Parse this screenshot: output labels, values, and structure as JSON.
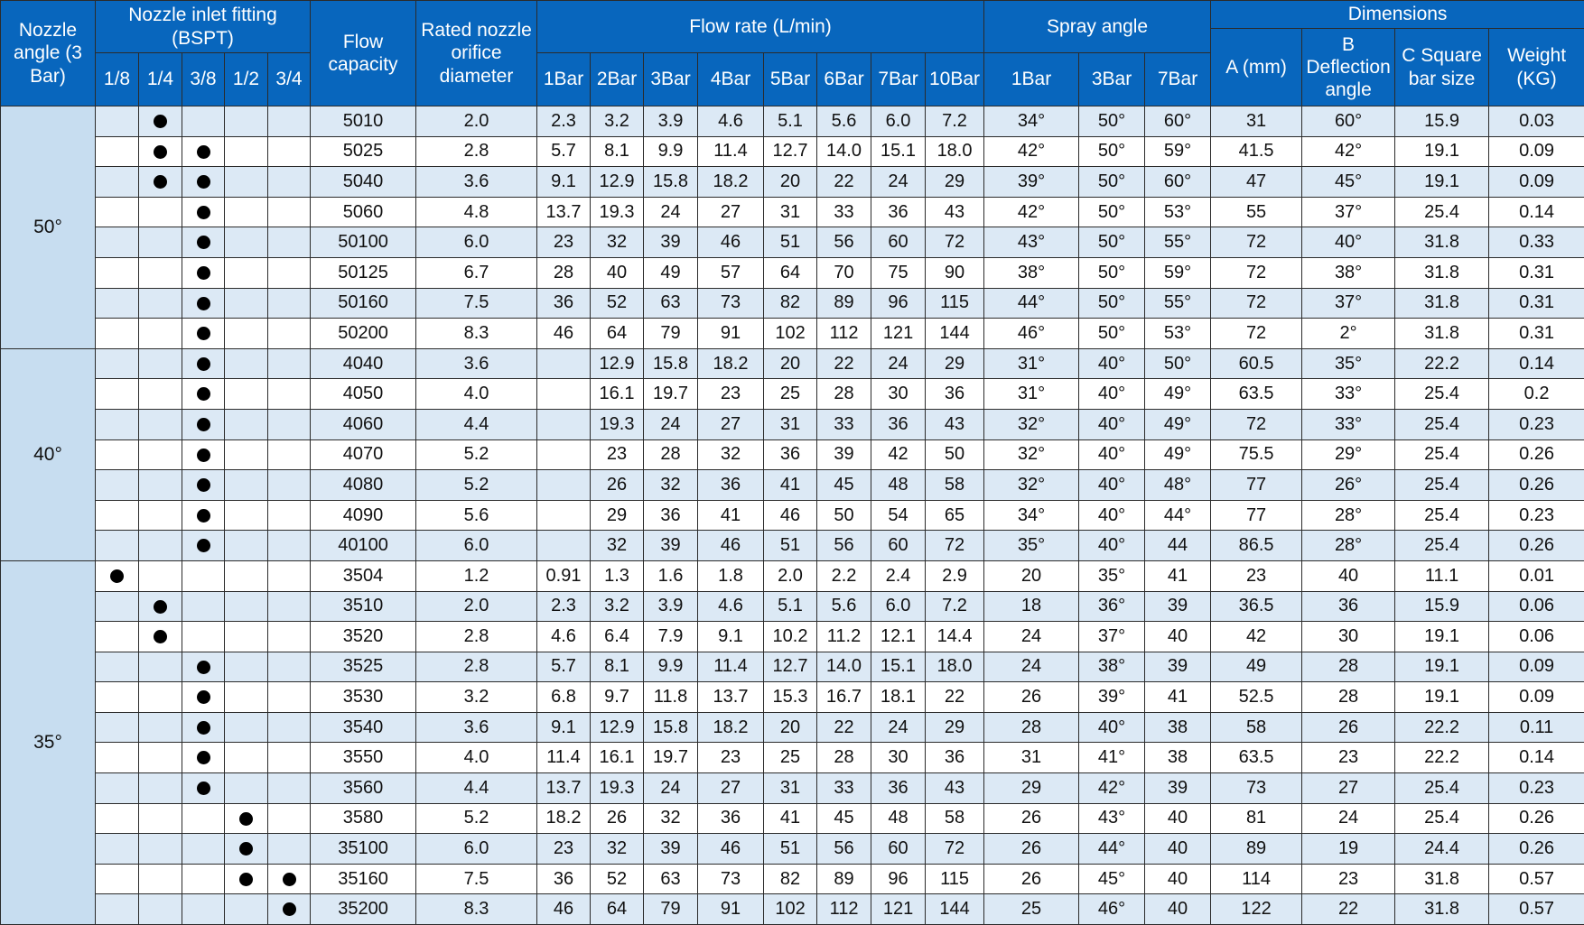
{
  "header": {
    "nozzle_angle": "Nozzle angle (3 Bar)",
    "inlet_fitting": "Nozzle inlet fitting (BSPT)",
    "fitting_sizes": [
      "1/8",
      "1/4",
      "3/8",
      "1/2",
      "3/4"
    ],
    "flow_capacity": "Flow capacity",
    "orifice_diameter": "Rated nozzle orifice diameter",
    "flow_rate": "Flow rate (L/min)",
    "pressures": [
      "1Bar",
      "2Bar",
      "3Bar",
      "4Bar",
      "5Bar",
      "6Bar",
      "7Bar",
      "10Bar"
    ],
    "spray_angle": "Spray angle",
    "spray_pressures": [
      "1Bar",
      "3Bar",
      "7Bar"
    ],
    "dimensions": "Dimensions",
    "dim_a": "A (mm)",
    "dim_b": "B Deflection angle",
    "dim_c": "C Square bar size",
    "weight": "Weight (KG)"
  },
  "groups": [
    {
      "angle": "50°",
      "rows": [
        {
          "fittings": [
            false,
            true,
            false,
            false,
            false
          ],
          "capacity": "5010",
          "orifice": "2.0",
          "flow": [
            "2.3",
            "3.2",
            "3.9",
            "4.6",
            "5.1",
            "5.6",
            "6.0",
            "7.2"
          ],
          "spray": [
            "34°",
            "50°",
            "60°"
          ],
          "a": "31",
          "b": "60°",
          "c": "15.9",
          "weight": "0.03"
        },
        {
          "fittings": [
            false,
            true,
            true,
            false,
            false
          ],
          "capacity": "5025",
          "orifice": "2.8",
          "flow": [
            "5.7",
            "8.1",
            "9.9",
            "11.4",
            "12.7",
            "14.0",
            "15.1",
            "18.0"
          ],
          "spray": [
            "42°",
            "50°",
            "59°"
          ],
          "a": "41.5",
          "b": "42°",
          "c": "19.1",
          "weight": "0.09"
        },
        {
          "fittings": [
            false,
            true,
            true,
            false,
            false
          ],
          "capacity": "5040",
          "orifice": "3.6",
          "flow": [
            "9.1",
            "12.9",
            "15.8",
            "18.2",
            "20",
            "22",
            "24",
            "29"
          ],
          "spray": [
            "39°",
            "50°",
            "60°"
          ],
          "a": "47",
          "b": "45°",
          "c": "19.1",
          "weight": "0.09"
        },
        {
          "fittings": [
            false,
            false,
            true,
            false,
            false
          ],
          "capacity": "5060",
          "orifice": "4.8",
          "flow": [
            "13.7",
            "19.3",
            "24",
            "27",
            "31",
            "33",
            "36",
            "43"
          ],
          "spray": [
            "42°",
            "50°",
            "53°"
          ],
          "a": "55",
          "b": "37°",
          "c": "25.4",
          "weight": "0.14"
        },
        {
          "fittings": [
            false,
            false,
            true,
            false,
            false
          ],
          "capacity": "50100",
          "orifice": "6.0",
          "flow": [
            "23",
            "32",
            "39",
            "46",
            "51",
            "56",
            "60",
            "72"
          ],
          "spray": [
            "43°",
            "50°",
            "55°"
          ],
          "a": "72",
          "b": "40°",
          "c": "31.8",
          "weight": "0.33"
        },
        {
          "fittings": [
            false,
            false,
            true,
            false,
            false
          ],
          "capacity": "50125",
          "orifice": "6.7",
          "flow": [
            "28",
            "40",
            "49",
            "57",
            "64",
            "70",
            "75",
            "90"
          ],
          "spray": [
            "38°",
            "50°",
            "59°"
          ],
          "a": "72",
          "b": "38°",
          "c": "31.8",
          "weight": "0.31"
        },
        {
          "fittings": [
            false,
            false,
            true,
            false,
            false
          ],
          "capacity": "50160",
          "orifice": "7.5",
          "flow": [
            "36",
            "52",
            "63",
            "73",
            "82",
            "89",
            "96",
            "115"
          ],
          "spray": [
            "44°",
            "50°",
            "55°"
          ],
          "a": "72",
          "b": "37°",
          "c": "31.8",
          "weight": "0.31"
        },
        {
          "fittings": [
            false,
            false,
            true,
            false,
            false
          ],
          "capacity": "50200",
          "orifice": "8.3",
          "flow": [
            "46",
            "64",
            "79",
            "91",
            "102",
            "112",
            "121",
            "144"
          ],
          "spray": [
            "46°",
            "50°",
            "53°"
          ],
          "a": "72",
          "b": "2°",
          "c": "31.8",
          "weight": "0.31"
        }
      ]
    },
    {
      "angle": "40°",
      "rows": [
        {
          "fittings": [
            false,
            false,
            true,
            false,
            false
          ],
          "capacity": "4040",
          "orifice": "3.6",
          "flow": [
            null,
            "12.9",
            "15.8",
            "18.2",
            "20",
            "22",
            "24",
            "29"
          ],
          "spray": [
            "31°",
            "40°",
            "50°"
          ],
          "a": "60.5",
          "b": "35°",
          "c": "22.2",
          "weight": "0.14"
        },
        {
          "fittings": [
            false,
            false,
            true,
            false,
            false
          ],
          "capacity": "4050",
          "orifice": "4.0",
          "flow": [
            null,
            "16.1",
            "19.7",
            "23",
            "25",
            "28",
            "30",
            "36"
          ],
          "spray": [
            "31°",
            "40°",
            "49°"
          ],
          "a": "63.5",
          "b": "33°",
          "c": "25.4",
          "weight": "0.2"
        },
        {
          "fittings": [
            false,
            false,
            true,
            false,
            false
          ],
          "capacity": "4060",
          "orifice": "4.4",
          "flow": [
            null,
            "19.3",
            "24",
            "27",
            "31",
            "33",
            "36",
            "43"
          ],
          "spray": [
            "32°",
            "40°",
            "49°"
          ],
          "a": "72",
          "b": "33°",
          "c": "25.4",
          "weight": "0.23"
        },
        {
          "fittings": [
            false,
            false,
            true,
            false,
            false
          ],
          "capacity": "4070",
          "orifice": "5.2",
          "flow": [
            null,
            "23",
            "28",
            "32",
            "36",
            "39",
            "42",
            "50"
          ],
          "spray": [
            "32°",
            "40°",
            "49°"
          ],
          "a": "75.5",
          "b": "29°",
          "c": "25.4",
          "weight": "0.26"
        },
        {
          "fittings": [
            false,
            false,
            true,
            false,
            false
          ],
          "capacity": "4080",
          "orifice": "5.2",
          "flow": [
            null,
            "26",
            "32",
            "36",
            "41",
            "45",
            "48",
            "58"
          ],
          "spray": [
            "32°",
            "40°",
            "48°"
          ],
          "a": "77",
          "b": "26°",
          "c": "25.4",
          "weight": "0.26"
        },
        {
          "fittings": [
            false,
            false,
            true,
            false,
            false
          ],
          "capacity": "4090",
          "orifice": "5.6",
          "flow": [
            null,
            "29",
            "36",
            "41",
            "46",
            "50",
            "54",
            "65"
          ],
          "spray": [
            "34°",
            "40°",
            "44°"
          ],
          "a": "77",
          "b": "28°",
          "c": "25.4",
          "weight": "0.23"
        },
        {
          "fittings": [
            false,
            false,
            true,
            false,
            false
          ],
          "capacity": "40100",
          "orifice": "6.0",
          "flow": [
            null,
            "32",
            "39",
            "46",
            "51",
            "56",
            "60",
            "72"
          ],
          "spray": [
            "35°",
            "40°",
            "44"
          ],
          "a": "86.5",
          "b": "28°",
          "c": "25.4",
          "weight": "0.26"
        }
      ]
    },
    {
      "angle": "35°",
      "rows": [
        {
          "fittings": [
            true,
            false,
            false,
            false,
            false
          ],
          "capacity": "3504",
          "orifice": "1.2",
          "flow": [
            "0.91",
            "1.3",
            "1.6",
            "1.8",
            "2.0",
            "2.2",
            "2.4",
            "2.9"
          ],
          "spray": [
            "20",
            "35°",
            "41"
          ],
          "a": "23",
          "b": "40",
          "c": "11.1",
          "weight": "0.01"
        },
        {
          "fittings": [
            false,
            true,
            false,
            false,
            false
          ],
          "capacity": "3510",
          "orifice": "2.0",
          "flow": [
            "2.3",
            "3.2",
            "3.9",
            "4.6",
            "5.1",
            "5.6",
            "6.0",
            "7.2"
          ],
          "spray": [
            "18",
            "36°",
            "39"
          ],
          "a": "36.5",
          "b": "36",
          "c": "15.9",
          "weight": "0.06"
        },
        {
          "fittings": [
            false,
            true,
            false,
            false,
            false
          ],
          "capacity": "3520",
          "orifice": "2.8",
          "flow": [
            "4.6",
            "6.4",
            "7.9",
            "9.1",
            "10.2",
            "11.2",
            "12.1",
            "14.4"
          ],
          "spray": [
            "24",
            "37°",
            "40"
          ],
          "a": "42",
          "b": "30",
          "c": "19.1",
          "weight": "0.06"
        },
        {
          "fittings": [
            false,
            false,
            true,
            false,
            false
          ],
          "capacity": "3525",
          "orifice": "2.8",
          "flow": [
            "5.7",
            "8.1",
            "9.9",
            "11.4",
            "12.7",
            "14.0",
            "15.1",
            "18.0"
          ],
          "spray": [
            "24",
            "38°",
            "39"
          ],
          "a": "49",
          "b": "28",
          "c": "19.1",
          "weight": "0.09"
        },
        {
          "fittings": [
            false,
            false,
            true,
            false,
            false
          ],
          "capacity": "3530",
          "orifice": "3.2",
          "flow": [
            "6.8",
            "9.7",
            "11.8",
            "13.7",
            "15.3",
            "16.7",
            "18.1",
            "22"
          ],
          "spray": [
            "26",
            "39°",
            "41"
          ],
          "a": "52.5",
          "b": "28",
          "c": "19.1",
          "weight": "0.09"
        },
        {
          "fittings": [
            false,
            false,
            true,
            false,
            false
          ],
          "capacity": "3540",
          "orifice": "3.6",
          "flow": [
            "9.1",
            "12.9",
            "15.8",
            "18.2",
            "20",
            "22",
            "24",
            "29"
          ],
          "spray": [
            "28",
            "40°",
            "38"
          ],
          "a": "58",
          "b": "26",
          "c": "22.2",
          "weight": "0.11"
        },
        {
          "fittings": [
            false,
            false,
            true,
            false,
            false
          ],
          "capacity": "3550",
          "orifice": "4.0",
          "flow": [
            "11.4",
            "16.1",
            "19.7",
            "23",
            "25",
            "28",
            "30",
            "36"
          ],
          "spray": [
            "31",
            "41°",
            "38"
          ],
          "a": "63.5",
          "b": "23",
          "c": "22.2",
          "weight": "0.14"
        },
        {
          "fittings": [
            false,
            false,
            true,
            false,
            false
          ],
          "capacity": "3560",
          "orifice": "4.4",
          "flow": [
            "13.7",
            "19.3",
            "24",
            "27",
            "31",
            "33",
            "36",
            "43"
          ],
          "spray": [
            "29",
            "42°",
            "39"
          ],
          "a": "73",
          "b": "27",
          "c": "25.4",
          "weight": "0.23"
        },
        {
          "fittings": [
            false,
            false,
            false,
            true,
            false
          ],
          "capacity": "3580",
          "orifice": "5.2",
          "flow": [
            "18.2",
            "26",
            "32",
            "36",
            "41",
            "45",
            "48",
            "58"
          ],
          "spray": [
            "26",
            "43°",
            "40"
          ],
          "a": "81",
          "b": "24",
          "c": "25.4",
          "weight": "0.26"
        },
        {
          "fittings": [
            false,
            false,
            false,
            true,
            false
          ],
          "capacity": "35100",
          "orifice": "6.0",
          "flow": [
            "23",
            "32",
            "39",
            "46",
            "51",
            "56",
            "60",
            "72"
          ],
          "spray": [
            "26",
            "44°",
            "40"
          ],
          "a": "89",
          "b": "19",
          "c": "24.4",
          "weight": "0.26"
        },
        {
          "fittings": [
            false,
            false,
            false,
            true,
            true
          ],
          "capacity": "35160",
          "orifice": "7.5",
          "flow": [
            "36",
            "52",
            "63",
            "73",
            "82",
            "89",
            "96",
            "115"
          ],
          "spray": [
            "26",
            "45°",
            "40"
          ],
          "a": "114",
          "b": "23",
          "c": "31.8",
          "weight": "0.57"
        },
        {
          "fittings": [
            false,
            false,
            false,
            false,
            true
          ],
          "capacity": "35200",
          "orifice": "8.3",
          "flow": [
            "46",
            "64",
            "79",
            "91",
            "102",
            "112",
            "121",
            "144"
          ],
          "spray": [
            "25",
            "46°",
            "40"
          ],
          "a": "122",
          "b": "22",
          "c": "31.8",
          "weight": "0.57"
        }
      ]
    }
  ]
}
